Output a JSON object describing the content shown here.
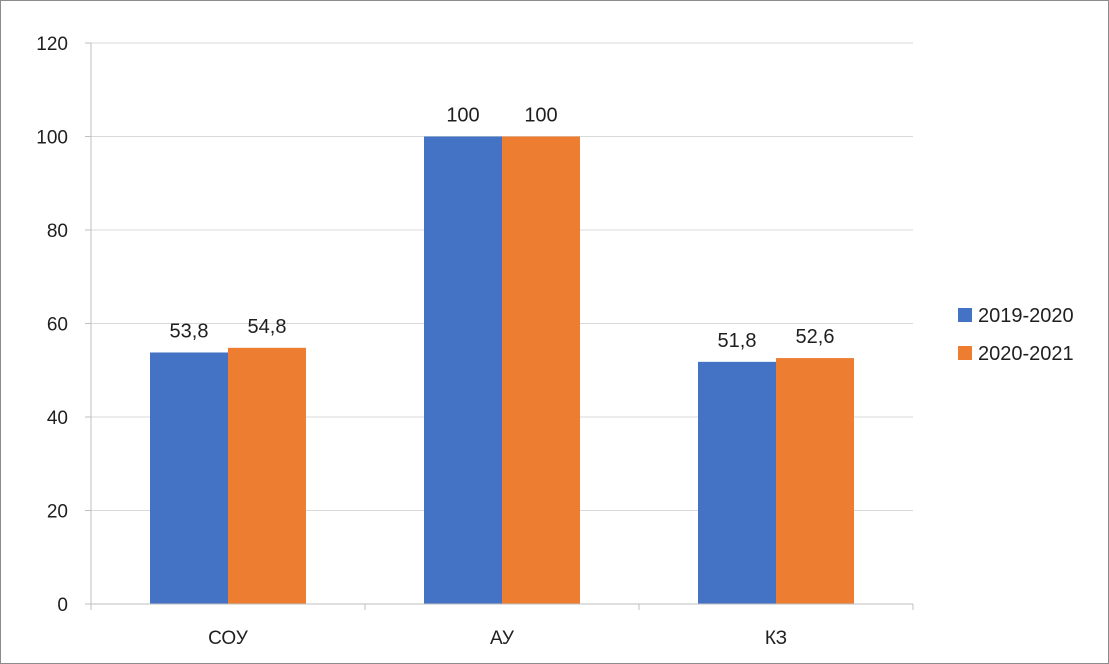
{
  "chart_data": {
    "type": "bar",
    "categories": [
      "СОУ",
      "АУ",
      "КЗ"
    ],
    "series": [
      {
        "name": "2019-2020",
        "values": [
          53.8,
          100,
          51.8
        ],
        "labels": [
          "53,8",
          "100",
          "51,8"
        ],
        "color": "#4472C4"
      },
      {
        "name": "2020-2021",
        "values": [
          54.8,
          100,
          52.6
        ],
        "labels": [
          "54,8",
          "100",
          "52,6"
        ],
        "color": "#ED7D31"
      }
    ],
    "ylim": [
      0,
      120
    ],
    "yticks": [
      0,
      20,
      40,
      60,
      80,
      100,
      120
    ],
    "grid": true,
    "legend": "right",
    "gridColor": "#d9d9d9",
    "axisColor": "#bfbfbf"
  }
}
